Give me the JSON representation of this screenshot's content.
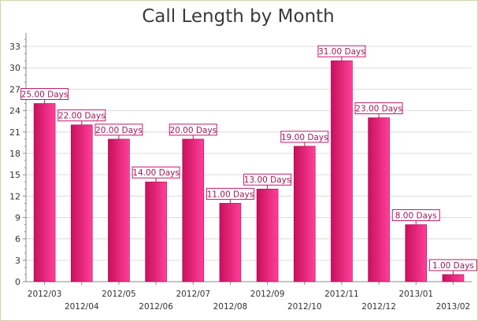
{
  "chart_data": {
    "type": "bar",
    "title": "Call Length by Month",
    "xlabel": "",
    "ylabel": "",
    "categories": [
      "2012/03",
      "2012/04",
      "2012/05",
      "2012/06",
      "2012/07",
      "2012/08",
      "2012/09",
      "2012/10",
      "2012/11",
      "2012/12",
      "2013/01",
      "2013/02"
    ],
    "values": [
      25,
      22,
      20,
      14,
      20,
      11,
      13,
      19,
      31,
      23,
      8,
      1
    ],
    "data_labels": [
      "25.00 Days",
      "22.00 Days",
      "20.00 Days",
      "14.00 Days",
      "20.00 Days",
      "11.00 Days",
      "13.00 Days",
      "19.00 Days",
      "31.00 Days",
      "23.00 Days",
      "8.00 Days",
      "1.00 Days"
    ],
    "ylim": [
      0,
      34
    ],
    "yticks": [
      0,
      3,
      6,
      9,
      12,
      15,
      18,
      21,
      24,
      27,
      30,
      33
    ],
    "grid": true,
    "legend": "none",
    "colors": {
      "bar_dark": "#c8105c",
      "bar_light": "#ff3f9a",
      "label_text": "#9b1a5a",
      "label_border": "#c2186b",
      "grid": "#dcdcdc",
      "axis": "#8a8a8a",
      "frame": "#c9d8a8"
    }
  }
}
